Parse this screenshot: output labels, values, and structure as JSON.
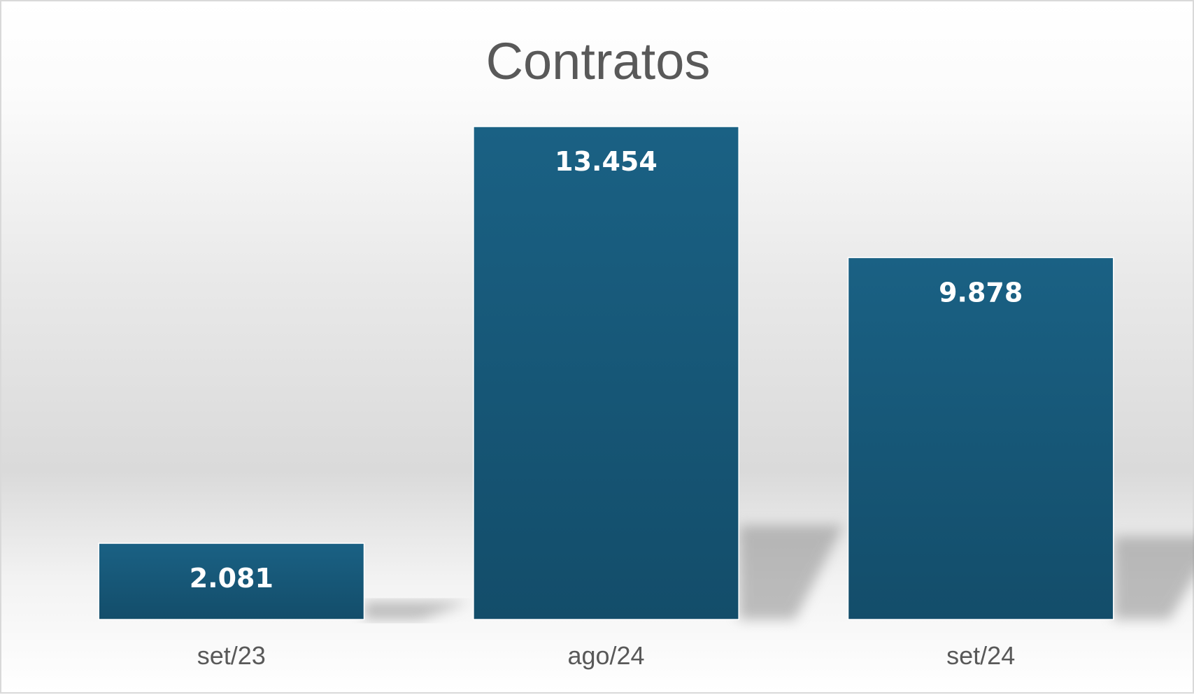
{
  "chart_data": {
    "type": "bar",
    "title": "Contratos",
    "categories": [
      "set/23",
      "ago/24",
      "set/24"
    ],
    "values": [
      2081,
      13454,
      9878
    ],
    "value_labels": [
      "2.081",
      "13.454",
      "9.878"
    ],
    "ylim": [
      0,
      15000
    ],
    "grid": false,
    "legend": "none",
    "xlabel": "",
    "ylabel": ""
  },
  "colors": {
    "bar_top": "#1a6184",
    "bar_bottom": "#134d6a",
    "text": "#595959"
  }
}
